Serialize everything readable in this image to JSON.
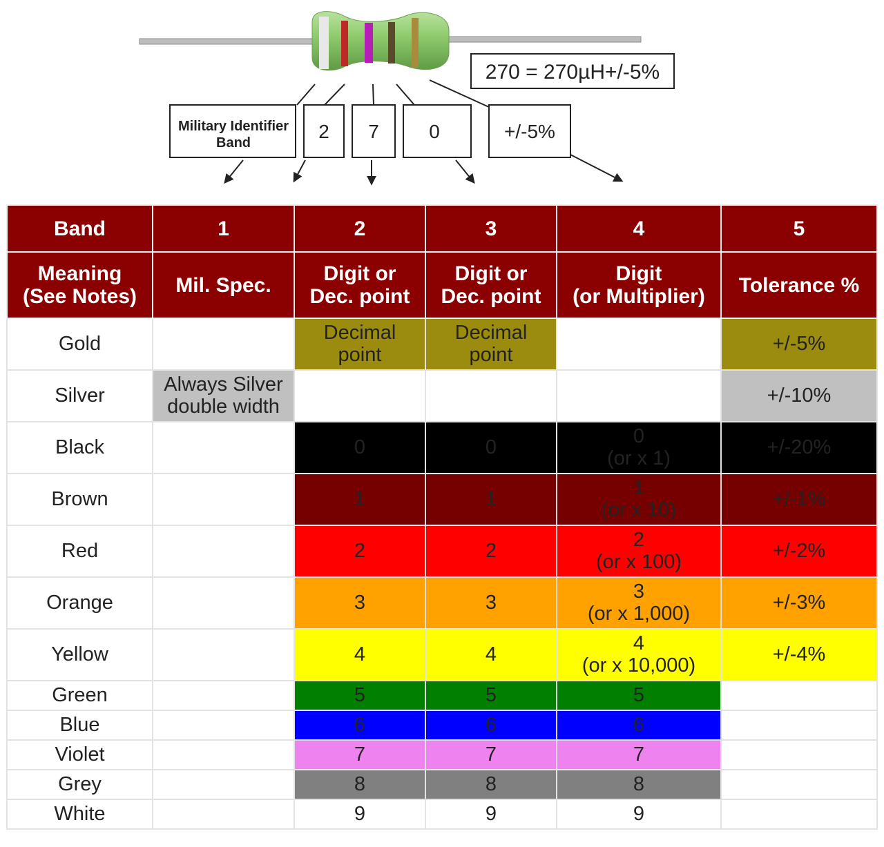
{
  "diagram": {
    "example_label": "270 = 270µH+/-5%",
    "boxes": [
      {
        "label_line1": "Military Identifier",
        "label_line2": "Band"
      },
      {
        "label": "2"
      },
      {
        "label": "7"
      },
      {
        "label": "0"
      },
      {
        "label": "+/-5%"
      }
    ]
  },
  "table": {
    "band_header": [
      "Band",
      "1",
      "2",
      "3",
      "4",
      "5"
    ],
    "meaning_header": {
      "band_lines": [
        "Meaning",
        "(See Notes)"
      ],
      "col1": "Mil. Spec.",
      "col2_lines": [
        "Digit or",
        "Dec. point"
      ],
      "col3_lines": [
        "Digit or",
        "Dec. point"
      ],
      "col4_lines": [
        "Digit",
        "(or Multiplier)"
      ],
      "col5": "Tolerance %"
    },
    "rows": [
      {
        "name": "Gold",
        "band1": "",
        "band2_lines": [
          "Decimal",
          "point"
        ],
        "band3_lines": [
          "Decimal",
          "point"
        ],
        "band4_lines": [],
        "band5": "+/-5%"
      },
      {
        "name": "Silver",
        "band1_lines": [
          "Always Silver",
          "double width"
        ],
        "band2_lines": [],
        "band3_lines": [],
        "band4_lines": [],
        "band5": "+/-10%"
      },
      {
        "name": "Black",
        "band2": "0",
        "band3": "0",
        "band4_lines": [
          "0",
          "(or x 1)"
        ],
        "band5": "+/-20%"
      },
      {
        "name": "Brown",
        "band2": "1",
        "band3": "1",
        "band4_lines": [
          "1",
          "(or x 10)"
        ],
        "band5": "+/-1%"
      },
      {
        "name": "Red",
        "band2": "2",
        "band3": "2",
        "band4_lines": [
          "2",
          "(or x 100)"
        ],
        "band5": "+/-2%"
      },
      {
        "name": "Orange",
        "band2": "3",
        "band3": "3",
        "band4_lines": [
          "3",
          "(or x 1,000)"
        ],
        "band5": "+/-3%"
      },
      {
        "name": "Yellow",
        "band2": "4",
        "band3": "4",
        "band4_lines": [
          "4",
          "(or x 10,000)"
        ],
        "band5": "+/-4%"
      },
      {
        "name": "Green",
        "band2": "5",
        "band3": "5",
        "band4": "5",
        "band5": ""
      },
      {
        "name": "Blue",
        "band2": "6",
        "band3": "6",
        "band4": "6",
        "band5": ""
      },
      {
        "name": "Violet",
        "band2": "7",
        "band3": "7",
        "band4": "7",
        "band5": ""
      },
      {
        "name": "Grey",
        "band2": "8",
        "band3": "8",
        "band4": "8",
        "band5": ""
      },
      {
        "name": "White",
        "band2": "9",
        "band3": "9",
        "band4": "9",
        "band5": ""
      }
    ]
  },
  "colors": {
    "header": "#8b0000",
    "gold": "#9b8b0e",
    "silver": "#c0c0c0",
    "black": "#000000",
    "brown": "#760000",
    "red": "#ff0000",
    "orange": "#ffa200",
    "yellow": "#ffff00",
    "green": "#007f00",
    "blue": "#0000ff",
    "violet": "#ee82ee",
    "grey": "#808080",
    "white": "#ffffff",
    "inductor_body": "#8cc96a"
  }
}
